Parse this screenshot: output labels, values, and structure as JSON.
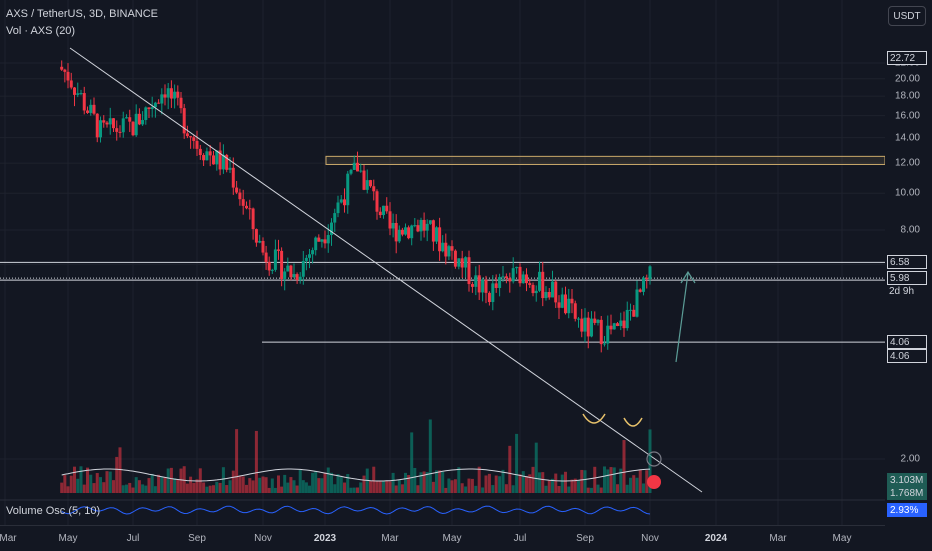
{
  "header": {
    "symbol_line": "AXS / TetherUS, 3D, BINANCE",
    "volume_line": "Vol · AXS (20)",
    "currency_button": "USDT"
  },
  "oscillator": {
    "label": "Volume Osc (5, 10)",
    "value": "2.93%"
  },
  "price_axis": {
    "ticks": [
      "22.00",
      "20.00",
      "18.00",
      "16.00",
      "14.00",
      "12.00",
      "10.00",
      "8.00",
      "6.50",
      "2.00"
    ],
    "tick_values": [
      22,
      20,
      18,
      16,
      14,
      12,
      10,
      8,
      6.5,
      2
    ],
    "labels": [
      {
        "text": "22.72",
        "value": 22.72,
        "style": "box"
      },
      {
        "text": "6.58",
        "value": 6.58,
        "style": "box"
      },
      {
        "text": "5.98",
        "value": 5.98,
        "style": "box"
      },
      {
        "text": "2d 9h",
        "value": 5.98,
        "style": "plain-below"
      },
      {
        "text": "4.06",
        "value": 4.06,
        "style": "box"
      },
      {
        "text": "4.06",
        "value": 4.06,
        "style": "box-below"
      },
      {
        "text": "3.103M",
        "value": null,
        "style": "volume"
      },
      {
        "text": "1.768M",
        "value": null,
        "style": "volume-below"
      }
    ]
  },
  "time_axis": {
    "ticks": [
      {
        "label": "Mar",
        "bold": false
      },
      {
        "label": "May",
        "bold": false
      },
      {
        "label": "Jul",
        "bold": false
      },
      {
        "label": "Sep",
        "bold": false
      },
      {
        "label": "Nov",
        "bold": false
      },
      {
        "label": "2023",
        "bold": true
      },
      {
        "label": "Mar",
        "bold": false
      },
      {
        "label": "May",
        "bold": false
      },
      {
        "label": "Jul",
        "bold": false
      },
      {
        "label": "Sep",
        "bold": false
      },
      {
        "label": "Nov",
        "bold": false
      },
      {
        "label": "2024",
        "bold": true
      },
      {
        "label": "Mar",
        "bold": false
      },
      {
        "label": "May",
        "bold": false
      }
    ]
  },
  "chart_data": {
    "type": "candlestick",
    "title": "AXS / TetherUS, 3D, BINANCE",
    "y_scale": "log",
    "ylim": [
      2,
      24
    ],
    "x_categories": [
      "Mar 2022",
      "May 2022",
      "Jul 2022",
      "Sep 2022",
      "Nov 2022",
      "Jan 2023",
      "Mar 2023",
      "May 2023",
      "Jul 2023",
      "Sep 2023",
      "Nov 2023",
      "Jan 2024",
      "Mar 2024",
      "May 2024"
    ],
    "approx_closes": [
      {
        "date": "May 2022",
        "value": 20.5
      },
      {
        "date": "Jun 2022",
        "value": 14.5
      },
      {
        "date": "Jul 2022",
        "value": 15.0
      },
      {
        "date": "Aug 2022",
        "value": 19.0
      },
      {
        "date": "Sep 2022",
        "value": 13.5
      },
      {
        "date": "Oct 2022",
        "value": 11.5
      },
      {
        "date": "Nov 2022",
        "value": 7.0
      },
      {
        "date": "Dec 2022",
        "value": 6.1
      },
      {
        "date": "Jan 2023",
        "value": 8.0
      },
      {
        "date": "Feb 2023",
        "value": 11.8
      },
      {
        "date": "Mar 2023",
        "value": 8.0
      },
      {
        "date": "Apr 2023",
        "value": 8.3
      },
      {
        "date": "May 2023",
        "value": 7.0
      },
      {
        "date": "Jun 2023",
        "value": 5.4
      },
      {
        "date": "Jul 2023",
        "value": 6.2
      },
      {
        "date": "Aug 2023",
        "value": 5.5
      },
      {
        "date": "Sep 2023",
        "value": 4.4
      },
      {
        "date": "Oct 2023",
        "value": 4.3
      },
      {
        "date": "Nov 2023",
        "value": 5.98
      }
    ],
    "horizontal_levels": [
      6.58,
      5.98,
      4.06
    ],
    "resistance_zone": [
      11.9,
      12.5
    ],
    "current_price": 5.98,
    "volume_series_name": "Vol · AXS (20)",
    "oscillator_series_name": "Volume Osc (5, 10)"
  },
  "colors": {
    "background": "#131722",
    "up": "#089981",
    "down": "#f23645",
    "line": "#d1d4dc",
    "zone": "#c9a86a",
    "arrow": "#5b9c96",
    "osc": "#2962ff"
  }
}
